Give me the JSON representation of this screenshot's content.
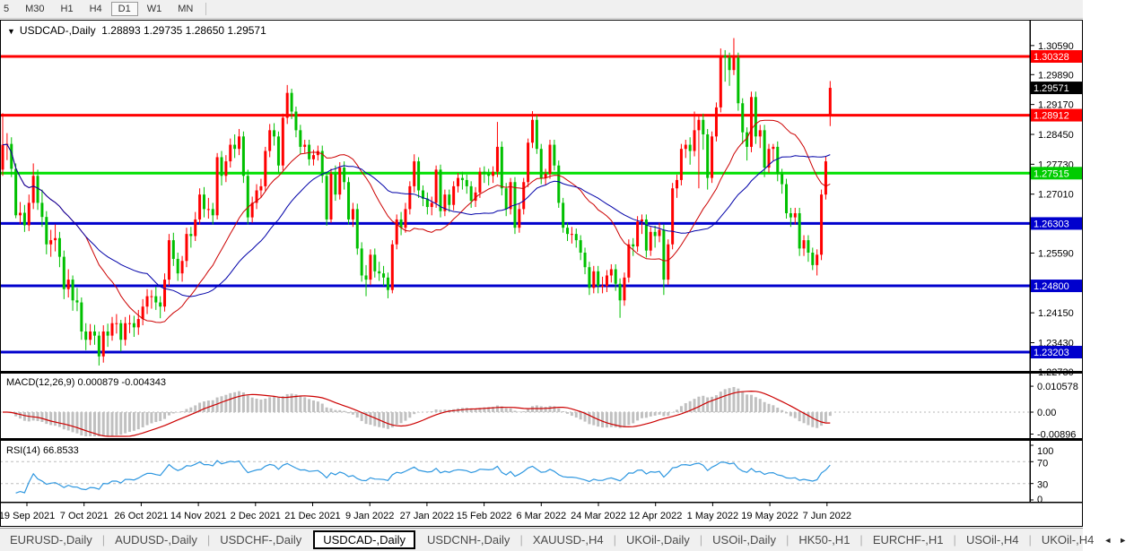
{
  "toolbar": {
    "timeframes": [
      "5",
      "M30",
      "H1",
      "H4",
      "D1",
      "W1",
      "MN"
    ],
    "active": "D1"
  },
  "chart": {
    "title_line": "USDCAD-,Daily  1.28893 1.29735 1.28650 1.29571",
    "dropdown_icon": "▼"
  },
  "panes": {
    "macd_label": "MACD(12,26,9) 0.000879 -0.004343",
    "rsi_label": "RSI(14) 66.8533"
  },
  "tabs": {
    "items": [
      "EURUSD-,Daily",
      "AUDUSD-,Daily",
      "USDCHF-,Daily",
      "USDCAD-,Daily",
      "USDCNH-,Daily",
      "XAUUSD-,H4",
      "UKOil-,Daily",
      "USOil-,Daily",
      "HK50-,H1",
      "EURCHF-,H1",
      "USOil-,H4",
      "UKOil-,H4"
    ],
    "active_index": 3,
    "scroll_left_icon": "◄",
    "scroll_right_icon": "►"
  },
  "chart_data": {
    "type": "candlestick",
    "symbol": "USDCAD",
    "timeframe": "Daily",
    "last_ohlc": {
      "open": 1.28893,
      "high": 1.29735,
      "low": 1.2865,
      "close": 1.29571
    },
    "ylim": [
      1.2275,
      1.3117
    ],
    "grid": false,
    "colors": {
      "bull": "#ff0000",
      "bear": "#00c000",
      "ma_fast": "#cc0000",
      "ma_slow": "#0000a8",
      "hline_red": "#ff0000",
      "hline_green": "#00e000",
      "hline_blue": "#0000cd",
      "macd_hist": "#c0c0c0",
      "macd_signal": "#cc0000",
      "rsi_line": "#2e97e0"
    },
    "price_ticks": [
      "1.30590",
      "1.29890",
      "1.29170",
      "1.28450",
      "1.27730",
      "1.27010",
      "1.25590",
      "1.24150",
      "1.23430",
      "1.22730"
    ],
    "hlines": [
      {
        "price": 1.30328,
        "label": "1.30328",
        "color": "#ff0000"
      },
      {
        "price": 1.28912,
        "label": "1.28912",
        "color": "#ff0000"
      },
      {
        "price": 1.27515,
        "label": "1.27515",
        "color": "#00e000"
      },
      {
        "price": 1.26303,
        "label": "1.26303",
        "color": "#0000cd"
      },
      {
        "price": 1.248,
        "label": "1.24800",
        "color": "#0000cd"
      },
      {
        "price": 1.23203,
        "label": "1.23203",
        "color": "#0000cd"
      }
    ],
    "current_price": {
      "value": 1.29571,
      "label": "1.29571",
      "box_color": "#000000"
    },
    "ma_periods": [
      20,
      34
    ],
    "macd": {
      "params": "12,26,9",
      "value": 0.000879,
      "signal": -0.004343,
      "axis_ticks": [
        {
          "v": 0.010578,
          "label": "0.010578"
        },
        {
          "v": 0.0,
          "label": "0.00"
        },
        {
          "v": -0.00896,
          "label": "-0.00896"
        }
      ]
    },
    "rsi": {
      "period": 14,
      "value": 66.8533,
      "levels": [
        70,
        30
      ],
      "axis_ticks": [
        {
          "v": 100,
          "label": "100"
        },
        {
          "v": 70,
          "label": "70"
        },
        {
          "v": 30,
          "label": "30"
        },
        {
          "v": 0,
          "label": "0"
        }
      ]
    },
    "date_labels": [
      "19 Sep 2021",
      "7 Oct 2021",
      "26 Oct 2021",
      "14 Nov 2021",
      "2 Dec 2021",
      "21 Dec 2021",
      "9 Jan 2022",
      "27 Jan 2022",
      "15 Feb 2022",
      "6 Mar 2022",
      "24 Mar 2022",
      "12 Apr 2022",
      "1 May 2022",
      "19 May 2022",
      "7 Jun 2022"
    ],
    "candles": [
      [
        1.276,
        1.2896,
        1.2745,
        1.282
      ],
      [
        1.282,
        1.2848,
        1.2783,
        1.2822
      ],
      [
        1.2822,
        1.2838,
        1.2742,
        1.2762
      ],
      [
        1.2762,
        1.2775,
        1.2643,
        1.265
      ],
      [
        1.265,
        1.2682,
        1.2629,
        1.2656
      ],
      [
        1.2656,
        1.2675,
        1.261,
        1.2626
      ],
      [
        1.2626,
        1.27,
        1.2612,
        1.268
      ],
      [
        1.268,
        1.2775,
        1.2665,
        1.2745
      ],
      [
        1.2745,
        1.276,
        1.2663,
        1.268
      ],
      [
        1.268,
        1.2712,
        1.2622,
        1.2646
      ],
      [
        1.2646,
        1.266,
        1.2556,
        1.258
      ],
      [
        1.258,
        1.2615,
        1.255,
        1.259
      ],
      [
        1.259,
        1.2628,
        1.2563,
        1.2595
      ],
      [
        1.2595,
        1.261,
        1.2525,
        1.255
      ],
      [
        1.255,
        1.2565,
        1.2448,
        1.2472
      ],
      [
        1.2472,
        1.252,
        1.2452,
        1.2495
      ],
      [
        1.2495,
        1.2505,
        1.242,
        1.2445
      ],
      [
        1.2445,
        1.2475,
        1.2419,
        1.244
      ],
      [
        1.244,
        1.2452,
        1.235,
        1.237
      ],
      [
        1.237,
        1.239,
        1.2325,
        1.235
      ],
      [
        1.235,
        1.2388,
        1.2337,
        1.237
      ],
      [
        1.237,
        1.2386,
        1.2338,
        1.236
      ],
      [
        1.236,
        1.237,
        1.2288,
        1.231
      ],
      [
        1.231,
        1.2385,
        1.2295,
        1.237
      ],
      [
        1.237,
        1.2389,
        1.2333,
        1.236
      ],
      [
        1.236,
        1.2405,
        1.2348,
        1.239
      ],
      [
        1.239,
        1.2412,
        1.2365,
        1.239
      ],
      [
        1.239,
        1.2398,
        1.2322,
        1.235
      ],
      [
        1.235,
        1.2405,
        1.2336,
        1.239
      ],
      [
        1.239,
        1.241,
        1.2366,
        1.239
      ],
      [
        1.239,
        1.2408,
        1.2357,
        1.238
      ],
      [
        1.238,
        1.2422,
        1.2362,
        1.24
      ],
      [
        1.24,
        1.2448,
        1.2385,
        1.243
      ],
      [
        1.243,
        1.2472,
        1.2412,
        1.2455
      ],
      [
        1.2455,
        1.247,
        1.2425,
        1.2455
      ],
      [
        1.2455,
        1.2478,
        1.2422,
        1.244
      ],
      [
        1.244,
        1.2455,
        1.2402,
        1.243
      ],
      [
        1.243,
        1.251,
        1.2418,
        1.2495
      ],
      [
        1.2495,
        1.2605,
        1.248,
        1.259
      ],
      [
        1.259,
        1.2608,
        1.2528,
        1.2545
      ],
      [
        1.2545,
        1.256,
        1.2492,
        1.251
      ],
      [
        1.251,
        1.2552,
        1.249,
        1.254
      ],
      [
        1.254,
        1.262,
        1.2525,
        1.2605
      ],
      [
        1.2605,
        1.2622,
        1.2572,
        1.26
      ],
      [
        1.26,
        1.2658,
        1.2588,
        1.264
      ],
      [
        1.264,
        1.2715,
        1.2628,
        1.27
      ],
      [
        1.27,
        1.2718,
        1.2645,
        1.2665
      ],
      [
        1.2665,
        1.2692,
        1.2642,
        1.2665
      ],
      [
        1.2665,
        1.268,
        1.2628,
        1.265
      ],
      [
        1.265,
        1.28,
        1.264,
        1.279
      ],
      [
        1.279,
        1.2805,
        1.2722,
        1.2745
      ],
      [
        1.2745,
        1.2795,
        1.273,
        1.278
      ],
      [
        1.278,
        1.2835,
        1.2765,
        1.282
      ],
      [
        1.282,
        1.2845,
        1.2788,
        1.281
      ],
      [
        1.281,
        1.2858,
        1.2795,
        1.284
      ],
      [
        1.284,
        1.2852,
        1.2728,
        1.2745
      ],
      [
        1.2745,
        1.276,
        1.2628,
        1.2645
      ],
      [
        1.2645,
        1.2695,
        1.2632,
        1.268
      ],
      [
        1.268,
        1.2725,
        1.2665,
        1.271
      ],
      [
        1.271,
        1.2738,
        1.2692,
        1.272
      ],
      [
        1.272,
        1.2815,
        1.2708,
        1.2805
      ],
      [
        1.2805,
        1.287,
        1.279,
        1.2855
      ],
      [
        1.2855,
        1.2872,
        1.2818,
        1.284
      ],
      [
        1.284,
        1.2852,
        1.2752,
        1.277
      ],
      [
        1.277,
        1.2895,
        1.2758,
        1.2885
      ],
      [
        1.2885,
        1.2964,
        1.287,
        1.2945
      ],
      [
        1.2945,
        1.2955,
        1.2882,
        1.29
      ],
      [
        1.29,
        1.2912,
        1.2838,
        1.2855
      ],
      [
        1.2855,
        1.2868,
        1.2798,
        1.2815
      ],
      [
        1.2815,
        1.2832,
        1.28,
        1.282
      ],
      [
        1.282,
        1.2832,
        1.277,
        1.2785
      ],
      [
        1.2785,
        1.2808,
        1.277,
        1.2795
      ],
      [
        1.2795,
        1.2818,
        1.2782,
        1.2805
      ],
      [
        1.2805,
        1.2818,
        1.2728,
        1.2745
      ],
      [
        1.2745,
        1.2755,
        1.2625,
        1.264
      ],
      [
        1.264,
        1.2762,
        1.2632,
        1.275
      ],
      [
        1.275,
        1.277,
        1.2685,
        1.27
      ],
      [
        1.27,
        1.2778,
        1.2688,
        1.2765
      ],
      [
        1.2765,
        1.278,
        1.2712,
        1.273
      ],
      [
        1.273,
        1.2742,
        1.2628,
        1.264
      ],
      [
        1.264,
        1.268,
        1.2622,
        1.2665
      ],
      [
        1.2665,
        1.2678,
        1.2555,
        1.257
      ],
      [
        1.257,
        1.2585,
        1.249,
        1.2505
      ],
      [
        1.2505,
        1.253,
        1.2455,
        1.2495
      ],
      [
        1.2495,
        1.2568,
        1.2482,
        1.2555
      ],
      [
        1.2555,
        1.257,
        1.25,
        1.2515
      ],
      [
        1.2515,
        1.2538,
        1.2492,
        1.251
      ],
      [
        1.251,
        1.2528,
        1.248,
        1.25
      ],
      [
        1.25,
        1.2512,
        1.245,
        1.247
      ],
      [
        1.247,
        1.259,
        1.2462,
        1.258
      ],
      [
        1.258,
        1.2652,
        1.2568,
        1.264
      ],
      [
        1.264,
        1.2658,
        1.2602,
        1.262
      ],
      [
        1.262,
        1.268,
        1.2608,
        1.2665
      ],
      [
        1.2665,
        1.2732,
        1.2652,
        1.272
      ],
      [
        1.272,
        1.2797,
        1.2705,
        1.278
      ],
      [
        1.278,
        1.279,
        1.2692,
        1.271
      ],
      [
        1.271,
        1.2722,
        1.2672,
        1.269
      ],
      [
        1.269,
        1.2705,
        1.2652,
        1.267
      ],
      [
        1.267,
        1.2695,
        1.265,
        1.268
      ],
      [
        1.268,
        1.277,
        1.2668,
        1.276
      ],
      [
        1.276,
        1.2772,
        1.2645,
        1.266
      ],
      [
        1.266,
        1.2712,
        1.2648,
        1.27
      ],
      [
        1.27,
        1.2712,
        1.2658,
        1.2675
      ],
      [
        1.2675,
        1.2732,
        1.2662,
        1.272
      ],
      [
        1.272,
        1.2752,
        1.2705,
        1.274
      ],
      [
        1.274,
        1.2755,
        1.2712,
        1.2735
      ],
      [
        1.2735,
        1.2748,
        1.2702,
        1.272
      ],
      [
        1.272,
        1.2732,
        1.2668,
        1.2685
      ],
      [
        1.2685,
        1.2718,
        1.267,
        1.2705
      ],
      [
        1.2705,
        1.2765,
        1.2692,
        1.2755
      ],
      [
        1.2755,
        1.2768,
        1.2728,
        1.275
      ],
      [
        1.275,
        1.2762,
        1.2722,
        1.2745
      ],
      [
        1.2745,
        1.2768,
        1.2728,
        1.2755
      ],
      [
        1.2755,
        1.2875,
        1.2742,
        1.2815
      ],
      [
        1.2815,
        1.2828,
        1.2698,
        1.2715
      ],
      [
        1.2715,
        1.2728,
        1.2648,
        1.2665
      ],
      [
        1.2665,
        1.274,
        1.2652,
        1.273
      ],
      [
        1.273,
        1.2742,
        1.2605,
        1.262
      ],
      [
        1.262,
        1.268,
        1.2608,
        1.2665
      ],
      [
        1.2665,
        1.274,
        1.2652,
        1.273
      ],
      [
        1.273,
        1.2835,
        1.2718,
        1.2825
      ],
      [
        1.2825,
        1.2901,
        1.2812,
        1.288
      ],
      [
        1.288,
        1.2892,
        1.2798,
        1.281
      ],
      [
        1.281,
        1.2822,
        1.2725,
        1.274
      ],
      [
        1.274,
        1.2762,
        1.2722,
        1.275
      ],
      [
        1.275,
        1.2832,
        1.2738,
        1.282
      ],
      [
        1.282,
        1.2832,
        1.2758,
        1.277
      ],
      [
        1.277,
        1.2782,
        1.2668,
        1.268
      ],
      [
        1.268,
        1.2692,
        1.2608,
        1.262
      ],
      [
        1.262,
        1.2632,
        1.2588,
        1.2605
      ],
      [
        1.2605,
        1.2622,
        1.2582,
        1.2605
      ],
      [
        1.2605,
        1.2618,
        1.2572,
        1.259
      ],
      [
        1.259,
        1.2602,
        1.2542,
        1.256
      ],
      [
        1.256,
        1.2572,
        1.2508,
        1.2525
      ],
      [
        1.2525,
        1.2538,
        1.2458,
        1.2475
      ],
      [
        1.2475,
        1.2528,
        1.2462,
        1.2515
      ],
      [
        1.2515,
        1.2528,
        1.2462,
        1.248
      ],
      [
        1.248,
        1.2502,
        1.2462,
        1.248
      ],
      [
        1.248,
        1.2518,
        1.2465,
        1.2505
      ],
      [
        1.2505,
        1.2532,
        1.2488,
        1.252
      ],
      [
        1.252,
        1.2532,
        1.2468,
        1.2485
      ],
      [
        1.2485,
        1.2498,
        1.2403,
        1.2445
      ],
      [
        1.2445,
        1.2512,
        1.2432,
        1.25
      ],
      [
        1.25,
        1.2592,
        1.2488,
        1.258
      ],
      [
        1.258,
        1.2595,
        1.2552,
        1.2575
      ],
      [
        1.2575,
        1.2648,
        1.2562,
        1.2635
      ],
      [
        1.2635,
        1.2652,
        1.2605,
        1.264
      ],
      [
        1.264,
        1.2652,
        1.2548,
        1.2565
      ],
      [
        1.2565,
        1.2622,
        1.2552,
        1.261
      ],
      [
        1.261,
        1.2625,
        1.2572,
        1.26
      ],
      [
        1.26,
        1.2632,
        1.2585,
        1.2615
      ],
      [
        1.2615,
        1.2628,
        1.2458,
        1.2495
      ],
      [
        1.2495,
        1.2592,
        1.2482,
        1.258
      ],
      [
        1.258,
        1.2728,
        1.2568,
        1.2715
      ],
      [
        1.2715,
        1.2748,
        1.2692,
        1.2735
      ],
      [
        1.2735,
        1.2822,
        1.2722,
        1.281
      ],
      [
        1.281,
        1.2832,
        1.2788,
        1.282
      ],
      [
        1.282,
        1.2838,
        1.2772,
        1.2805
      ],
      [
        1.2805,
        1.29,
        1.2792,
        1.2855
      ],
      [
        1.2855,
        1.2892,
        1.2715,
        1.288
      ],
      [
        1.288,
        1.2895,
        1.2808,
        1.2845
      ],
      [
        1.2845,
        1.2858,
        1.2712,
        1.274
      ],
      [
        1.274,
        1.2852,
        1.2728,
        1.284
      ],
      [
        1.284,
        1.2922,
        1.2828,
        1.291
      ],
      [
        1.291,
        1.3052,
        1.2898,
        1.3035
      ],
      [
        1.3035,
        1.3048,
        1.2972,
        1.303
      ],
      [
        1.303,
        1.3042,
        1.2962,
        1.3
      ],
      [
        1.3,
        1.3077,
        1.2988,
        1.303
      ],
      [
        1.303,
        1.3042,
        1.2902,
        1.292
      ],
      [
        1.292,
        1.2932,
        1.2822,
        1.285
      ],
      [
        1.285,
        1.2862,
        1.2782,
        1.2815
      ],
      [
        1.2815,
        1.2948,
        1.2802,
        1.2935
      ],
      [
        1.2935,
        1.2948,
        1.2822,
        1.284
      ],
      [
        1.284,
        1.2868,
        1.2812,
        1.2855
      ],
      [
        1.2855,
        1.2868,
        1.2742,
        1.2765
      ],
      [
        1.2765,
        1.2822,
        1.2752,
        1.281
      ],
      [
        1.281,
        1.2822,
        1.2782,
        1.2815
      ],
      [
        1.2815,
        1.2828,
        1.2732,
        1.275
      ],
      [
        1.275,
        1.2762,
        1.2702,
        1.2725
      ],
      [
        1.2725,
        1.2738,
        1.2642,
        1.2655
      ],
      [
        1.2655,
        1.2668,
        1.2622,
        1.2645
      ],
      [
        1.2645,
        1.2668,
        1.2628,
        1.2655
      ],
      [
        1.2655,
        1.2668,
        1.2552,
        1.257
      ],
      [
        1.257,
        1.2602,
        1.2552,
        1.259
      ],
      [
        1.259,
        1.2602,
        1.2538,
        1.256
      ],
      [
        1.256,
        1.2572,
        1.2518,
        1.253
      ],
      [
        1.253,
        1.2568,
        1.2505,
        1.2555
      ],
      [
        1.2555,
        1.2712,
        1.2542,
        1.27
      ],
      [
        1.27,
        1.2792,
        1.2688,
        1.278
      ],
      [
        1.28893,
        1.29735,
        1.2865,
        1.29571
      ]
    ]
  }
}
